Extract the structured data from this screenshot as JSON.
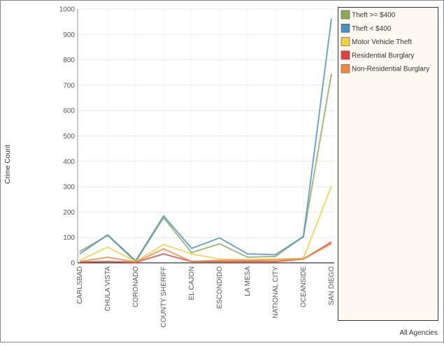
{
  "chart_data": {
    "type": "line",
    "y_label": "Crime Count",
    "footer": "All Agencies",
    "categories": [
      "CARLSBAD",
      "CHULA VISTA",
      "CORONADO",
      "COUNTY SHERIFF",
      "EL CAJON",
      "ESCONDIDO",
      "LA MESA",
      "NATIONAL CITY",
      "OCEANSIDE",
      "SAN DIEGO"
    ],
    "series": [
      {
        "name": "Theft >= $400",
        "color": "#8aab52",
        "values": [
          45,
          108,
          5,
          178,
          40,
          75,
          22,
          25,
          105,
          745
        ]
      },
      {
        "name": "Theft < $400",
        "color": "#4a90c0",
        "values": [
          35,
          110,
          8,
          185,
          57,
          98,
          35,
          32,
          103,
          962
        ]
      },
      {
        "name": "Motor Vehicle Theft",
        "color": "#f0d040",
        "values": [
          10,
          62,
          5,
          72,
          35,
          15,
          12,
          15,
          18,
          303
        ]
      },
      {
        "name": "Residential Burglary",
        "color": "#e04040",
        "values": [
          3,
          5,
          2,
          35,
          5,
          5,
          5,
          5,
          15,
          82
        ]
      },
      {
        "name": "Non-Residential Burglary",
        "color": "#f08a40",
        "values": [
          5,
          22,
          3,
          55,
          5,
          10,
          10,
          12,
          15,
          75
        ]
      }
    ],
    "ylim": [
      0,
      1000
    ],
    "yticks": [
      0,
      100,
      200,
      300,
      400,
      500,
      600,
      700,
      800,
      900,
      1000
    ],
    "grid": true
  }
}
